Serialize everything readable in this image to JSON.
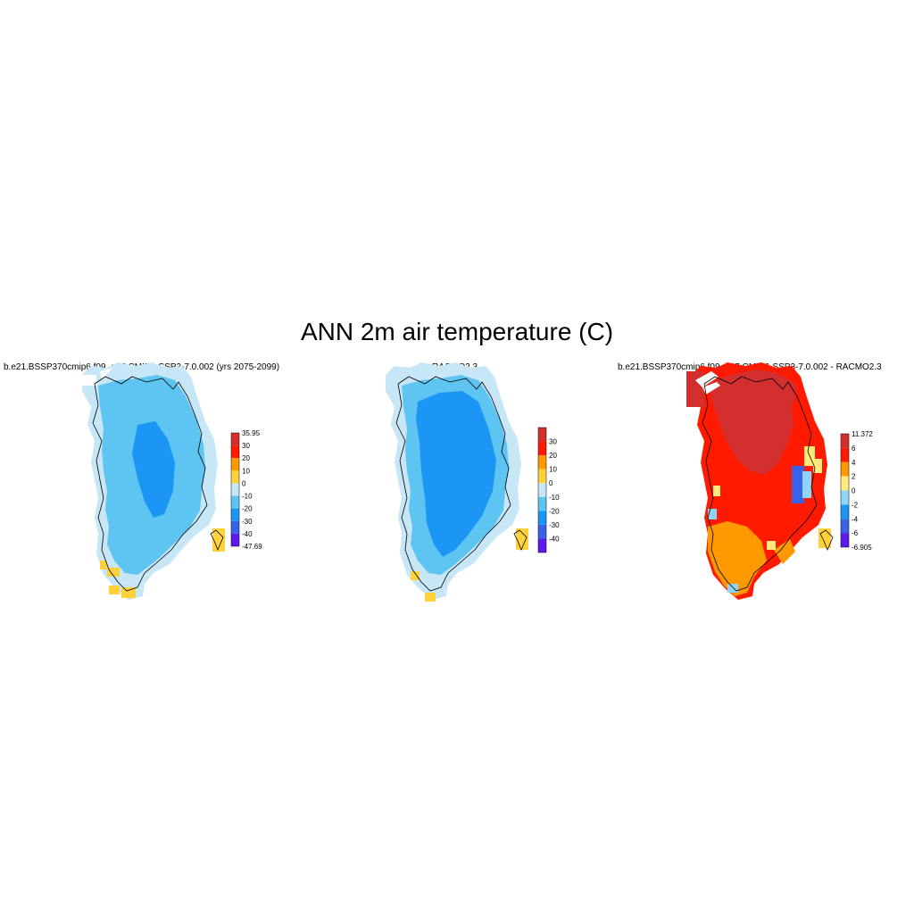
{
  "title": "ANN 2m air temperature (C)",
  "panels": [
    {
      "title": "b.e21.BSSP370cmip6.f09_g17.CMIP6-SSP3-7.0.002 (yrs 2075-2099)",
      "colorbar": {
        "labels": [
          "35.95",
          "30",
          "20",
          "10",
          "0",
          "-10",
          "-20",
          "-30",
          "-40",
          "-47.69"
        ],
        "colors": [
          "#d32f2f",
          "#ff1a00",
          "#ff9900",
          "#ffd23c",
          "#c7e6f6",
          "#5ec5f3",
          "#1c96f5",
          "#3a62e6",
          "#5c1aeb"
        ]
      }
    },
    {
      "title": "RACMO2.3",
      "colorbar": {
        "labels": [
          "30",
          "20",
          "10",
          "0",
          "-10",
          "-20",
          "-30",
          "-40"
        ],
        "colors": [
          "#d32f2f",
          "#ff1a00",
          "#ff9900",
          "#ffd23c",
          "#c7e6f6",
          "#5ec5f3",
          "#1c96f5",
          "#3a62e6",
          "#5c1aeb"
        ]
      }
    },
    {
      "title": "b.e21.BSSP370cmip6.f09_g17.CMIP6-SSP3-7.0.002 - RACMO2.3",
      "colorbar": {
        "labels": [
          "11.372",
          "6",
          "4",
          "2",
          "0",
          "-2",
          "-4",
          "-6",
          "-6.905"
        ],
        "colors": [
          "#d32f2f",
          "#ff1a00",
          "#ff9900",
          "#ffea7a",
          "#8fd3f5",
          "#1c96f5",
          "#3a62e6",
          "#5c1aeb"
        ]
      }
    }
  ]
}
